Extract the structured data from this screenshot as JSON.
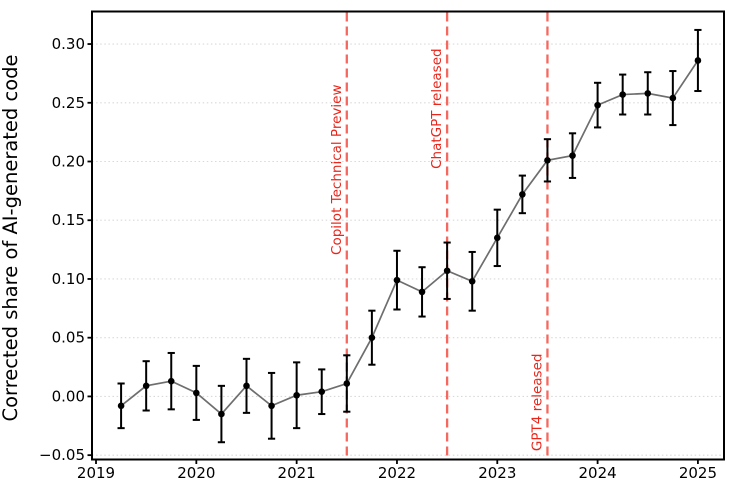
{
  "chart_data": {
    "type": "line",
    "title": "",
    "xlabel": "",
    "ylabel": "Corrected share of AI-generated code",
    "grid": "horizontal-dotted",
    "legend_position": "none",
    "x": [
      2019.25,
      2019.5,
      2019.75,
      2020.0,
      2020.25,
      2020.5,
      2020.75,
      2021.0,
      2021.25,
      2021.5,
      2021.75,
      2022.0,
      2022.25,
      2022.5,
      2022.75,
      2023.0,
      2023.25,
      2023.5,
      2023.75,
      2024.0,
      2024.25,
      2024.5,
      2024.75,
      2025.0
    ],
    "series": [
      {
        "name": "Corrected share of AI-generated code",
        "values": [
          -0.008,
          0.009,
          0.013,
          0.003,
          -0.015,
          0.009,
          -0.008,
          0.001,
          0.004,
          0.011,
          0.05,
          0.099,
          0.089,
          0.107,
          0.098,
          0.135,
          0.172,
          0.201,
          0.205,
          0.248,
          0.257,
          0.258,
          0.254,
          0.286
        ],
        "errors": [
          0.019,
          0.021,
          0.024,
          0.023,
          0.024,
          0.023,
          0.028,
          0.028,
          0.019,
          0.024,
          0.023,
          0.025,
          0.021,
          0.024,
          0.025,
          0.024,
          0.016,
          0.018,
          0.019,
          0.019,
          0.017,
          0.018,
          0.023,
          0.026
        ]
      }
    ],
    "x_ticks": [
      2019,
      2020,
      2021,
      2022,
      2023,
      2024,
      2025
    ],
    "x_tick_labels": [
      "2019",
      "2020",
      "2021",
      "2022",
      "2023",
      "2024",
      "2025"
    ],
    "y_ticks": [
      -0.05,
      0.0,
      0.05,
      0.1,
      0.15,
      0.2,
      0.25,
      0.3
    ],
    "y_tick_labels": [
      "−0.05",
      "0.00",
      "0.05",
      "0.10",
      "0.15",
      "0.20",
      "0.25",
      "0.30"
    ],
    "xlim": [
      2018.96,
      2025.26
    ],
    "ylim": [
      -0.0537,
      0.3277
    ],
    "annotations": [
      {
        "label": "Copilot Technical Preview",
        "x": 2021.5,
        "label_y": 0.193
      },
      {
        "label": "ChatGPT released",
        "x": 2022.5,
        "label_y": 0.245
      },
      {
        "label": "GPT4 released",
        "x": 2023.5,
        "label_y": -0.005
      }
    ],
    "colors": {
      "line": "#6e6e6e",
      "marker": "#000000",
      "errorbar": "#000000",
      "event_line": "#f4544a",
      "event_text": "#e9261b",
      "grid": "#d9d9d9",
      "axis": "#000000",
      "background": "#ffffff"
    }
  }
}
